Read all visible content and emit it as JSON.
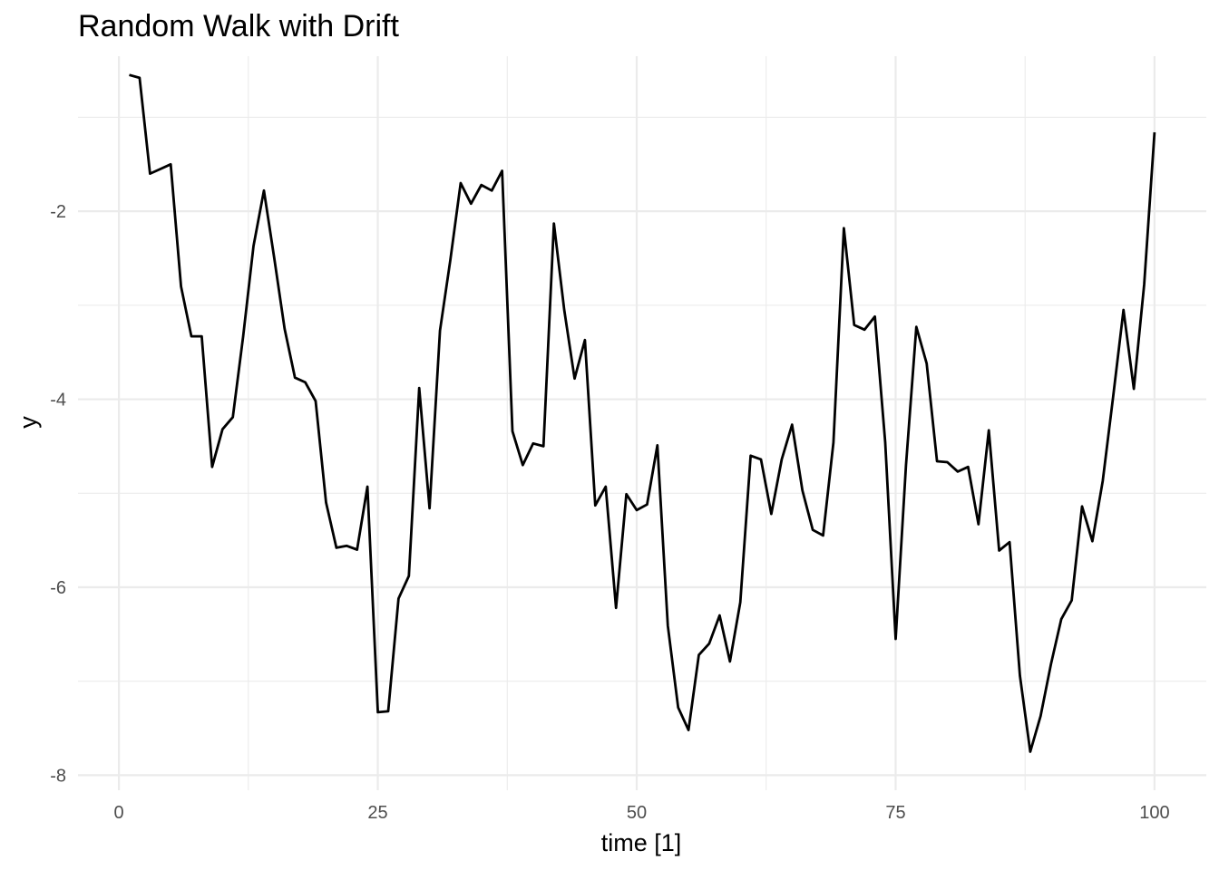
{
  "chart_data": {
    "type": "line",
    "title": "Random Walk with Drift",
    "xlabel": "time [1]",
    "ylabel": "y",
    "xlim": [
      -3.95,
      105
    ],
    "ylim": [
      -8.16,
      -0.35
    ],
    "x_ticks": [
      0,
      25,
      50,
      75,
      100
    ],
    "x_tick_labels": [
      "0",
      "25",
      "50",
      "75",
      "100"
    ],
    "y_ticks": [
      -8,
      -6,
      -4,
      -2
    ],
    "y_tick_labels": [
      "-8",
      "-6",
      "-4",
      "-2"
    ],
    "grid": true,
    "legend": "none",
    "line_color": "#000000",
    "series": [
      {
        "x": [
          1,
          2,
          3,
          4,
          5,
          6,
          7,
          8,
          9,
          10,
          11,
          12,
          13,
          14,
          15,
          16,
          17,
          18,
          19,
          20,
          21,
          22,
          23,
          24,
          25,
          26,
          27,
          28,
          29,
          30,
          31,
          32,
          33,
          34,
          35,
          36,
          37,
          38,
          39,
          40,
          41,
          42,
          43,
          44,
          45,
          46,
          47,
          48,
          49,
          50,
          51,
          52,
          53,
          54,
          55,
          56,
          57,
          58,
          59,
          60,
          61,
          62,
          63,
          64,
          65,
          66,
          67,
          68,
          69,
          70,
          71,
          72,
          73,
          74,
          75,
          76,
          77,
          78,
          79,
          80,
          81,
          82,
          83,
          84,
          85,
          86,
          87,
          88,
          89,
          90,
          91,
          92,
          93,
          94,
          95,
          96,
          97,
          98,
          99,
          100
        ],
        "values": [
          -0.55,
          -0.58,
          -1.6,
          -1.55,
          -1.5,
          -2.8,
          -3.33,
          -3.33,
          -4.72,
          -4.32,
          -4.19,
          -3.33,
          -2.37,
          -1.78,
          -2.5,
          -3.25,
          -3.77,
          -3.82,
          -4.02,
          -5.1,
          -5.58,
          -5.56,
          -5.6,
          -4.93,
          -7.33,
          -7.32,
          -6.12,
          -5.88,
          -3.88,
          -5.16,
          -3.27,
          -2.52,
          -1.7,
          -1.92,
          -1.72,
          -1.78,
          -1.57,
          -4.34,
          -4.7,
          -4.47,
          -4.5,
          -2.13,
          -3.05,
          -3.78,
          -3.37,
          -5.13,
          -4.93,
          -6.22,
          -5.01,
          -5.18,
          -5.12,
          -4.49,
          -6.41,
          -7.28,
          -7.52,
          -6.72,
          -6.6,
          -6.3,
          -6.79,
          -6.16,
          -4.6,
          -4.64,
          -5.22,
          -4.64,
          -4.27,
          -4.97,
          -5.39,
          -5.45,
          -4.46,
          -2.18,
          -3.21,
          -3.26,
          -3.12,
          -4.46,
          -6.55,
          -4.7,
          -3.23,
          -3.62,
          -4.66,
          -4.67,
          -4.77,
          -4.72,
          -5.33,
          -4.33,
          -5.61,
          -5.52,
          -6.94,
          -7.75,
          -7.37,
          -6.82,
          -6.34,
          -6.14,
          -5.14,
          -5.51,
          -4.87,
          -3.98,
          -3.05,
          -3.89,
          -2.78,
          -1.16
        ]
      }
    ]
  }
}
